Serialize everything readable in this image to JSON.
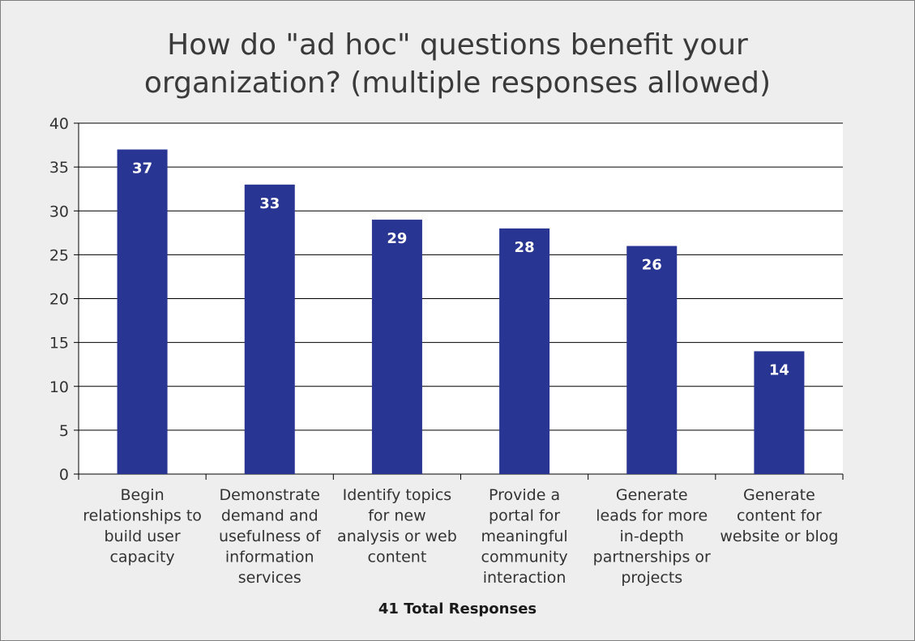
{
  "chart_data": {
    "type": "bar",
    "title_lines": [
      "How do \"ad hoc\" questions benefit your",
      "organization? (multiple responses allowed)"
    ],
    "categories": [
      [
        "Begin",
        "relationships to",
        "build user",
        "capacity"
      ],
      [
        "Demonstrate",
        "demand and",
        "usefulness of",
        "information",
        "services"
      ],
      [
        "Identify topics",
        "for new",
        "analysis or web",
        "content"
      ],
      [
        "Provide a",
        "portal for",
        "meaningful",
        "community",
        "interaction"
      ],
      [
        "Generate",
        "leads for more",
        "in-depth",
        "partnerships or",
        "projects"
      ],
      [
        "Generate",
        "content for",
        "website or blog"
      ]
    ],
    "values": [
      37,
      33,
      29,
      28,
      26,
      14
    ],
    "data_labels": [
      "37",
      "33",
      "29",
      "28",
      "26",
      "14"
    ],
    "ylim": [
      0,
      40
    ],
    "yticks": [
      "0",
      "5",
      "10",
      "15",
      "20",
      "25",
      "30",
      "35",
      "40"
    ],
    "xlabel": "41 Total Responses",
    "grid": true,
    "legend": "none",
    "colors": {
      "bar": "#283593",
      "plot_bg": "#ffffff",
      "frame_bg": "#eeeeee",
      "grid": "#000000"
    }
  }
}
